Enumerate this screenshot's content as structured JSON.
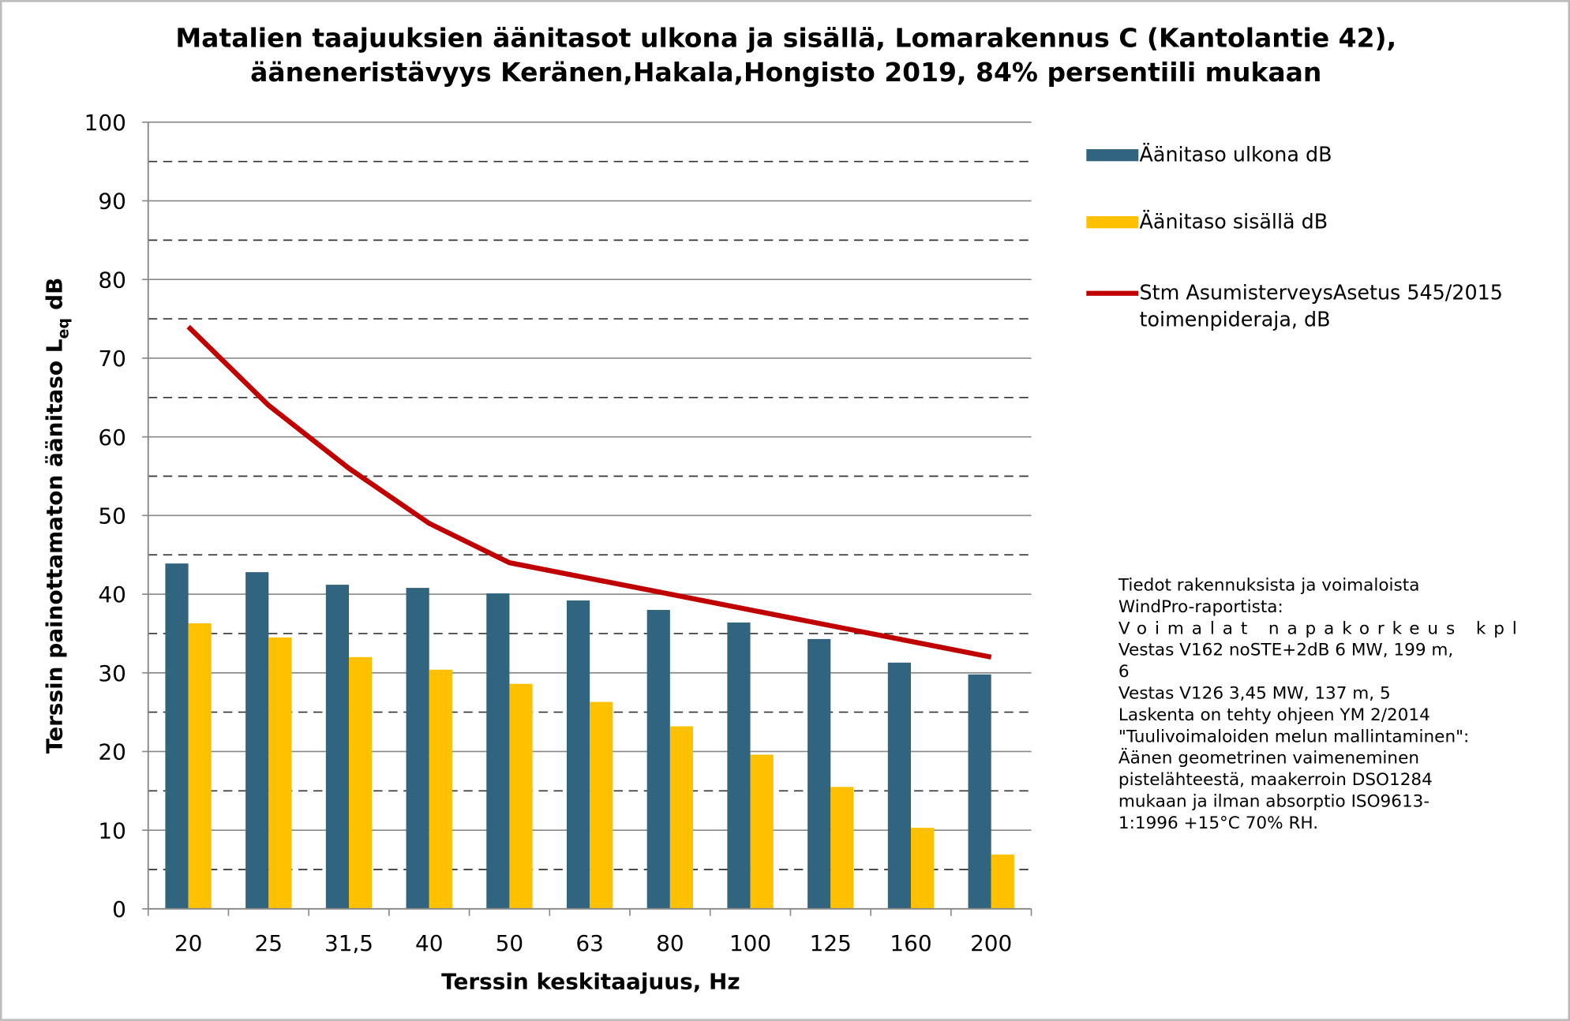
{
  "chart_data": {
    "type": "bar_line",
    "title": "Matalien taajuuksien äänitasot ulkona ja sisällä, Lomarakennus C (Kantolantie 42), ääneneristävyys Keränen,Hakala,Hongisto 2019, 84% persentiili mukaan",
    "x_label": "Terssin keskitaajuus, Hz",
    "y_label": {
      "text": "Terssin painottamaton äänitaso L",
      "subscript": "eq",
      "unit": "dB"
    },
    "categories": [
      "20",
      "25",
      "31,5",
      "40",
      "50",
      "63",
      "80",
      "100",
      "125",
      "160",
      "200"
    ],
    "series": [
      {
        "name": "Äänitaso ulkona dB",
        "type": "bar",
        "color": "#31657f",
        "values": [
          43.9,
          42.8,
          41.2,
          40.8,
          40.1,
          39.2,
          38.0,
          36.4,
          34.3,
          31.3,
          29.8
        ]
      },
      {
        "name": "Äänitaso sisällä dB",
        "type": "bar",
        "color": "#ffc000",
        "values": [
          36.3,
          34.5,
          32.0,
          30.4,
          28.6,
          26.3,
          23.2,
          19.6,
          15.5,
          10.3,
          6.9
        ]
      },
      {
        "name": "Stm AsumisterveysAsetus 545/2015 toimenpideraja, dB",
        "type": "line",
        "color": "#c00000",
        "values": [
          74,
          64,
          56,
          49,
          44,
          42,
          40,
          38,
          36,
          34,
          32
        ]
      }
    ],
    "ylim": [
      0,
      100
    ],
    "yticks": [
      0,
      10,
      20,
      30,
      40,
      50,
      60,
      70,
      80,
      90,
      100
    ],
    "minor_grid": [
      5,
      15,
      25,
      35,
      45,
      55,
      65,
      75,
      85,
      95
    ],
    "grid": true,
    "legend": "right",
    "annotation": [
      "Tiedot rakennuksista ja voimaloista",
      "WindPro-raportista:",
      "Voimalat napakorkeus kpl",
      "Vestas V162 noSTE+2dB  6 MW, 199 m,",
      "6",
      "Vestas V126  3,45 MW, 137 m, 5",
      "Laskenta on tehty ohjeen YM 2/2014",
      "\"Tuulivoimaloiden melun mallintaminen\":",
      "Äänen geometrinen vaimeneminen",
      "pistelähteestä, maakerroin DSO1284",
      "mukaan ja ilman absorptio ISO9613-",
      "1:1996  +15°C 70% RH."
    ]
  }
}
